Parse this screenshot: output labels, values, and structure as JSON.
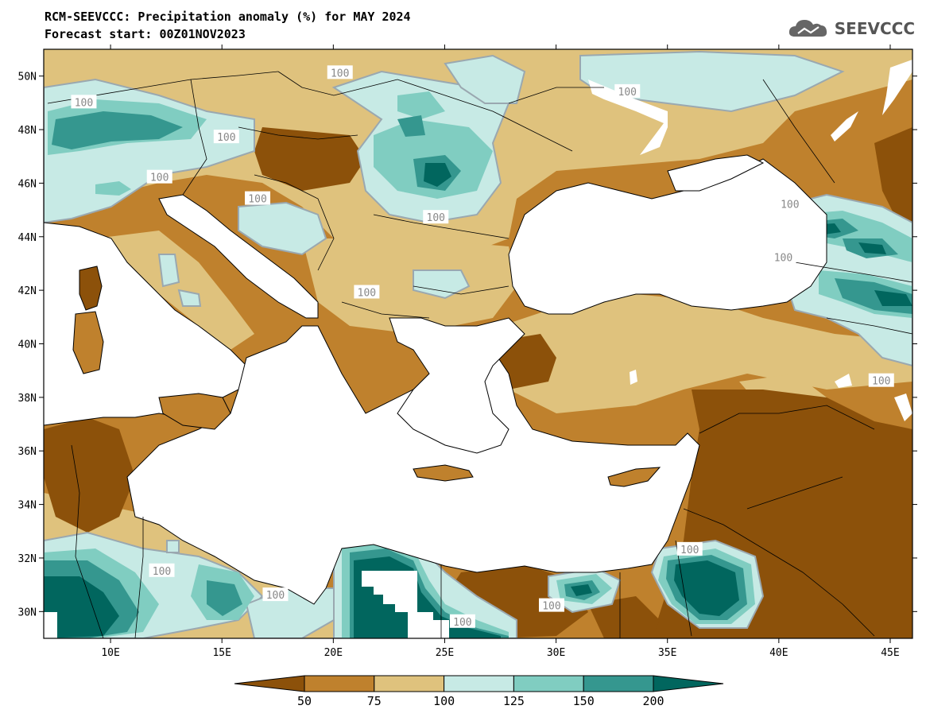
{
  "header": {
    "title_line1": "RCM-SEEVCCC: Precipitation anomaly (%) for MAY 2024",
    "title_line2": "Forecast start: 00Z01NOV2023",
    "logo_text": "SEEVCCC"
  },
  "map": {
    "projection": "lat-lon",
    "lon_range": [
      7,
      46
    ],
    "lat_range": [
      29,
      51
    ],
    "x_ticks": [
      "10E",
      "15E",
      "20E",
      "25E",
      "30E",
      "35E",
      "40E",
      "45E"
    ],
    "x_tick_values": [
      10,
      15,
      20,
      25,
      30,
      35,
      40,
      45
    ],
    "y_ticks": [
      "30N",
      "32N",
      "34N",
      "36N",
      "38N",
      "40N",
      "42N",
      "44N",
      "46N",
      "48N",
      "50N"
    ],
    "y_tick_values": [
      30,
      32,
      34,
      36,
      38,
      40,
      42,
      44,
      46,
      48,
      50
    ],
    "contour_labels": [
      {
        "text": "100",
        "lon": 8.8,
        "lat": 49.0
      },
      {
        "text": "100",
        "lon": 20.3,
        "lat": 50.1
      },
      {
        "text": "100",
        "lon": 33.2,
        "lat": 49.4
      },
      {
        "text": "100",
        "lon": 15.2,
        "lat": 47.7
      },
      {
        "text": "100",
        "lon": 12.2,
        "lat": 46.2
      },
      {
        "text": "100",
        "lon": 16.6,
        "lat": 45.4
      },
      {
        "text": "100",
        "lon": 24.6,
        "lat": 44.7
      },
      {
        "text": "100",
        "lon": 40.5,
        "lat": 45.2
      },
      {
        "text": "100",
        "lon": 40.2,
        "lat": 43.2
      },
      {
        "text": "100",
        "lon": 21.5,
        "lat": 41.9
      },
      {
        "text": "100",
        "lon": 44.6,
        "lat": 38.6
      },
      {
        "text": "100",
        "lon": 12.3,
        "lat": 31.5
      },
      {
        "text": "100",
        "lon": 17.4,
        "lat": 30.6
      },
      {
        "text": "100",
        "lon": 25.8,
        "lat": 29.6
      },
      {
        "text": "100",
        "lon": 29.8,
        "lat": 30.2
      },
      {
        "text": "100",
        "lon": 36.0,
        "lat": 32.3
      }
    ]
  },
  "legend": {
    "labels": [
      "50",
      "75",
      "100",
      "125",
      "150",
      "200"
    ],
    "colors": [
      "#8c510a",
      "#bf812d",
      "#dfc27d",
      "#c7eae5",
      "#80cdc1",
      "#35978f",
      "#01665e"
    ]
  },
  "colors": {
    "ocean": "#ffffff",
    "dry_strong": "#8c510a",
    "dry": "#bf812d",
    "dry_light": "#dfc27d",
    "wet_light": "#c7eae5",
    "wet": "#80cdc1",
    "wet_strong": "#35978f",
    "wet_extreme": "#01665e"
  }
}
